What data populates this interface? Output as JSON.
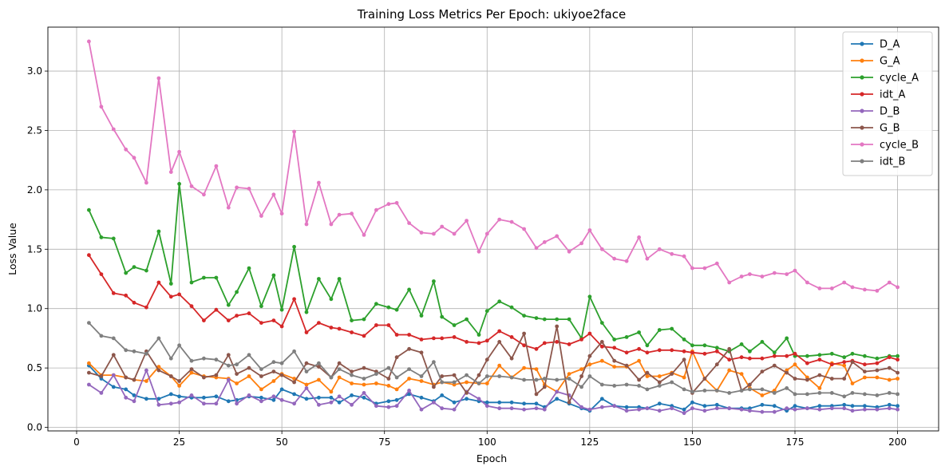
{
  "chart_data": {
    "type": "line",
    "title": "Training Loss Metrics Per Epoch: ukiyoe2face",
    "xlabel": "Epoch",
    "ylabel": "Loss Value",
    "xlim": [
      -7,
      210
    ],
    "ylim": [
      -0.03,
      3.37
    ],
    "xticks": [
      0,
      25,
      50,
      75,
      100,
      125,
      150,
      175,
      200
    ],
    "yticks": [
      0.0,
      0.5,
      1.0,
      1.5,
      2.0,
      2.5,
      3.0
    ],
    "grid": true,
    "legend_position": "top-right",
    "x": [
      3,
      6,
      9,
      12,
      14,
      17,
      20,
      23,
      25,
      28,
      31,
      34,
      37,
      39,
      42,
      45,
      48,
      50,
      53,
      56,
      59,
      62,
      64,
      67,
      70,
      73,
      76,
      78,
      81,
      84,
      87,
      89,
      92,
      95,
      98,
      100,
      103,
      106,
      109,
      112,
      114,
      117,
      120,
      123,
      125,
      128,
      131,
      134,
      137,
      139,
      142,
      145,
      148,
      150,
      153,
      156,
      159,
      162,
      164,
      167,
      170,
      173,
      175,
      178,
      181,
      184,
      187,
      189,
      192,
      195,
      198,
      200
    ],
    "series": [
      {
        "name": "D_A",
        "color": "#1f77b4",
        "values": [
          0.52,
          0.41,
          0.34,
          0.32,
          0.27,
          0.24,
          0.24,
          0.28,
          0.26,
          0.25,
          0.25,
          0.26,
          0.22,
          0.23,
          0.26,
          0.25,
          0.23,
          0.32,
          0.28,
          0.24,
          0.25,
          0.25,
          0.21,
          0.27,
          0.25,
          0.2,
          0.22,
          0.23,
          0.28,
          0.25,
          0.22,
          0.27,
          0.21,
          0.24,
          0.22,
          0.21,
          0.21,
          0.21,
          0.2,
          0.2,
          0.17,
          0.24,
          0.2,
          0.16,
          0.14,
          0.24,
          0.18,
          0.17,
          0.17,
          0.16,
          0.2,
          0.18,
          0.15,
          0.21,
          0.18,
          0.19,
          0.16,
          0.16,
          0.16,
          0.19,
          0.18,
          0.14,
          0.18,
          0.16,
          0.18,
          0.18,
          0.19,
          0.18,
          0.18,
          0.17,
          0.19,
          0.18
        ]
      },
      {
        "name": "G_A",
        "color": "#ff7f0e",
        "values": [
          0.54,
          0.44,
          0.44,
          0.42,
          0.4,
          0.39,
          0.51,
          0.43,
          0.35,
          0.46,
          0.43,
          0.42,
          0.41,
          0.37,
          0.43,
          0.32,
          0.39,
          0.45,
          0.41,
          0.36,
          0.4,
          0.3,
          0.42,
          0.37,
          0.36,
          0.37,
          0.35,
          0.32,
          0.41,
          0.39,
          0.36,
          0.38,
          0.36,
          0.38,
          0.37,
          0.37,
          0.52,
          0.42,
          0.5,
          0.49,
          0.36,
          0.3,
          0.45,
          0.49,
          0.53,
          0.56,
          0.51,
          0.51,
          0.56,
          0.43,
          0.43,
          0.46,
          0.42,
          0.64,
          0.41,
          0.31,
          0.48,
          0.45,
          0.33,
          0.27,
          0.31,
          0.48,
          0.53,
          0.42,
          0.33,
          0.54,
          0.52,
          0.37,
          0.42,
          0.42,
          0.4,
          0.41
        ]
      },
      {
        "name": "cycle_A",
        "color": "#2ca02c",
        "values": [
          1.83,
          1.6,
          1.59,
          1.3,
          1.35,
          1.32,
          1.65,
          1.21,
          2.05,
          1.22,
          1.26,
          1.26,
          1.03,
          1.14,
          1.34,
          1.02,
          1.28,
          0.99,
          1.52,
          0.97,
          1.25,
          1.08,
          1.25,
          0.9,
          0.91,
          1.04,
          1.01,
          0.99,
          1.16,
          0.94,
          1.23,
          0.93,
          0.86,
          0.91,
          0.78,
          0.98,
          1.06,
          1.01,
          0.94,
          0.92,
          0.91,
          0.91,
          0.91,
          0.75,
          1.1,
          0.88,
          0.74,
          0.76,
          0.8,
          0.69,
          0.82,
          0.83,
          0.74,
          0.69,
          0.69,
          0.67,
          0.64,
          0.7,
          0.64,
          0.72,
          0.63,
          0.75,
          0.6,
          0.6,
          0.61,
          0.62,
          0.59,
          0.62,
          0.6,
          0.58,
          0.6,
          0.6
        ]
      },
      {
        "name": "idt_A",
        "color": "#d62728",
        "values": [
          1.45,
          1.29,
          1.13,
          1.11,
          1.05,
          1.01,
          1.22,
          1.1,
          1.12,
          1.02,
          0.9,
          0.99,
          0.9,
          0.94,
          0.96,
          0.88,
          0.9,
          0.85,
          1.08,
          0.8,
          0.88,
          0.84,
          0.83,
          0.8,
          0.77,
          0.86,
          0.86,
          0.78,
          0.78,
          0.74,
          0.75,
          0.75,
          0.76,
          0.72,
          0.71,
          0.73,
          0.81,
          0.76,
          0.69,
          0.66,
          0.71,
          0.72,
          0.7,
          0.74,
          0.79,
          0.68,
          0.67,
          0.63,
          0.66,
          0.63,
          0.65,
          0.65,
          0.64,
          0.63,
          0.62,
          0.64,
          0.57,
          0.59,
          0.58,
          0.58,
          0.6,
          0.6,
          0.62,
          0.54,
          0.57,
          0.53,
          0.55,
          0.56,
          0.53,
          0.54,
          0.59,
          0.57
        ]
      },
      {
        "name": "D_B",
        "color": "#9467bd",
        "values": [
          0.36,
          0.29,
          0.44,
          0.25,
          0.22,
          0.48,
          0.19,
          0.2,
          0.21,
          0.27,
          0.2,
          0.2,
          0.4,
          0.2,
          0.27,
          0.22,
          0.26,
          0.23,
          0.2,
          0.33,
          0.19,
          0.21,
          0.26,
          0.19,
          0.29,
          0.18,
          0.17,
          0.18,
          0.31,
          0.15,
          0.21,
          0.16,
          0.15,
          0.3,
          0.24,
          0.18,
          0.16,
          0.16,
          0.15,
          0.16,
          0.15,
          0.3,
          0.27,
          0.17,
          0.15,
          0.17,
          0.18,
          0.14,
          0.15,
          0.16,
          0.14,
          0.16,
          0.12,
          0.16,
          0.14,
          0.16,
          0.16,
          0.15,
          0.14,
          0.13,
          0.13,
          0.16,
          0.15,
          0.16,
          0.15,
          0.16,
          0.16,
          0.14,
          0.15,
          0.15,
          0.16,
          0.15
        ]
      },
      {
        "name": "G_B",
        "color": "#8c564b",
        "values": [
          0.46,
          0.43,
          0.61,
          0.42,
          0.4,
          0.64,
          0.48,
          0.43,
          0.39,
          0.49,
          0.42,
          0.44,
          0.61,
          0.45,
          0.5,
          0.43,
          0.47,
          0.44,
          0.38,
          0.54,
          0.51,
          0.42,
          0.54,
          0.47,
          0.5,
          0.47,
          0.41,
          0.59,
          0.66,
          0.63,
          0.34,
          0.43,
          0.44,
          0.29,
          0.44,
          0.57,
          0.72,
          0.58,
          0.79,
          0.28,
          0.34,
          0.85,
          0.21,
          0.43,
          0.6,
          0.72,
          0.56,
          0.52,
          0.4,
          0.46,
          0.38,
          0.45,
          0.57,
          0.29,
          0.41,
          0.53,
          0.66,
          0.31,
          0.36,
          0.47,
          0.52,
          0.46,
          0.41,
          0.4,
          0.44,
          0.41,
          0.41,
          0.55,
          0.47,
          0.48,
          0.5,
          0.46
        ]
      },
      {
        "name": "cycle_B",
        "color": "#e377c2",
        "values": [
          3.25,
          2.7,
          2.51,
          2.34,
          2.27,
          2.06,
          2.94,
          2.15,
          2.32,
          2.03,
          1.96,
          2.2,
          1.85,
          2.02,
          2.01,
          1.78,
          1.96,
          1.8,
          2.49,
          1.71,
          2.06,
          1.71,
          1.79,
          1.8,
          1.62,
          1.83,
          1.88,
          1.89,
          1.72,
          1.64,
          1.63,
          1.69,
          1.63,
          1.74,
          1.48,
          1.63,
          1.75,
          1.73,
          1.67,
          1.51,
          1.56,
          1.61,
          1.48,
          1.55,
          1.66,
          1.5,
          1.42,
          1.4,
          1.6,
          1.42,
          1.5,
          1.46,
          1.44,
          1.34,
          1.34,
          1.38,
          1.22,
          1.27,
          1.29,
          1.27,
          1.3,
          1.29,
          1.32,
          1.22,
          1.17,
          1.17,
          1.22,
          1.18,
          1.16,
          1.15,
          1.22,
          1.18
        ]
      },
      {
        "name": "idt_B",
        "color": "#7f7f7f",
        "values": [
          0.88,
          0.77,
          0.75,
          0.65,
          0.64,
          0.62,
          0.75,
          0.58,
          0.69,
          0.56,
          0.58,
          0.57,
          0.52,
          0.53,
          0.61,
          0.49,
          0.55,
          0.54,
          0.64,
          0.47,
          0.54,
          0.42,
          0.49,
          0.44,
          0.41,
          0.45,
          0.5,
          0.42,
          0.49,
          0.43,
          0.55,
          0.38,
          0.38,
          0.44,
          0.37,
          0.43,
          0.43,
          0.42,
          0.4,
          0.4,
          0.41,
          0.4,
          0.41,
          0.34,
          0.43,
          0.36,
          0.35,
          0.36,
          0.35,
          0.32,
          0.35,
          0.38,
          0.32,
          0.3,
          0.31,
          0.31,
          0.29,
          0.31,
          0.32,
          0.32,
          0.29,
          0.33,
          0.28,
          0.28,
          0.29,
          0.29,
          0.26,
          0.29,
          0.28,
          0.27,
          0.29,
          0.28
        ]
      }
    ]
  }
}
